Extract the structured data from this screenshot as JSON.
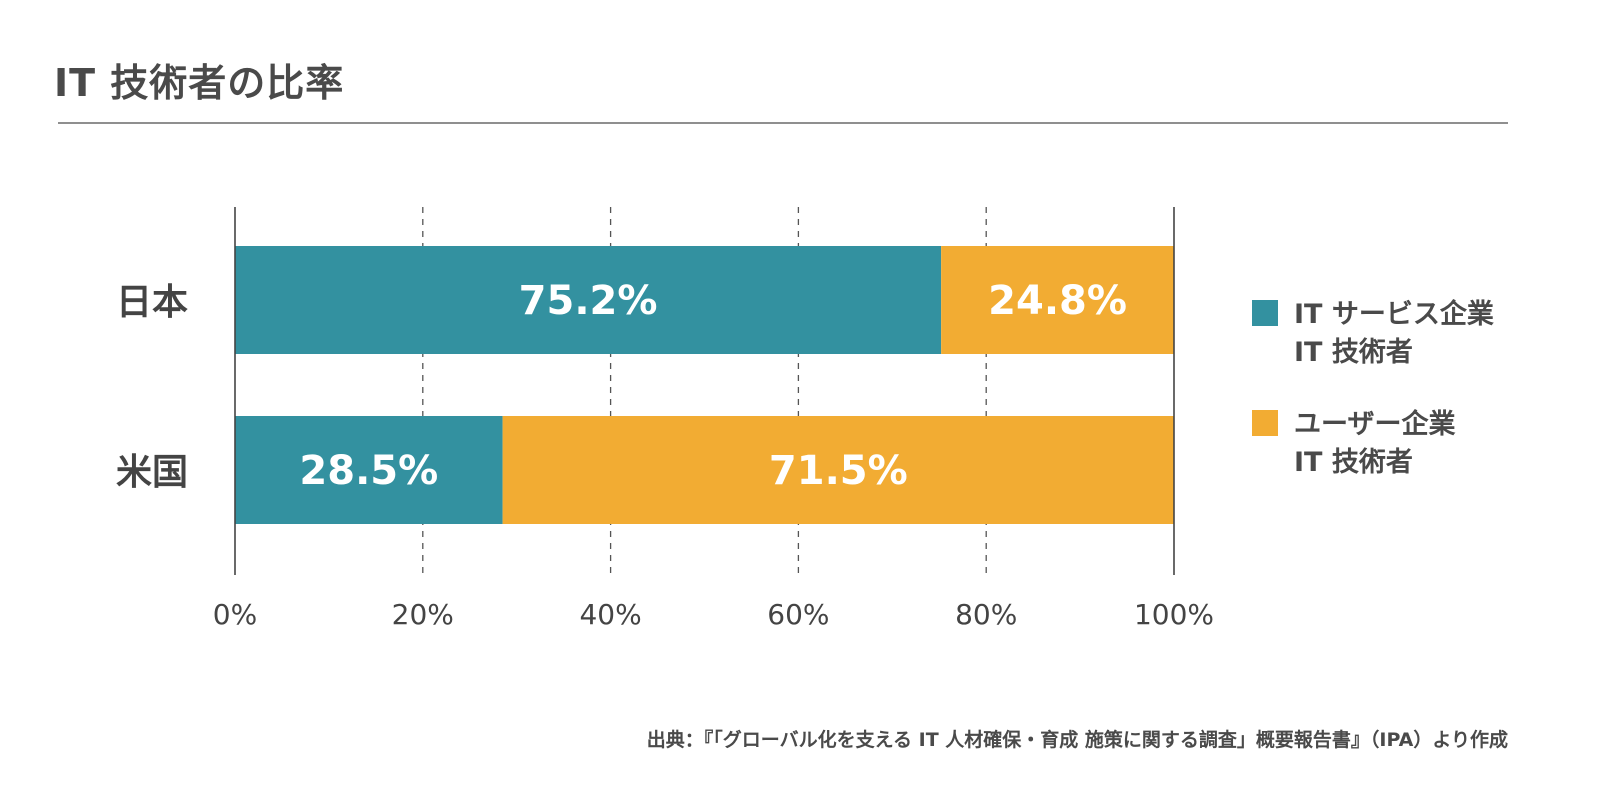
{
  "title": "IT 技術者の比率",
  "source": "出典：『「グローバル化を支える IT 人材確保・育成 施策に関する調査」概要報告書』（IPA）より作成",
  "colors": {
    "it_service": "#3391a0",
    "user_company": "#f2ac33",
    "axis": "#444444",
    "grid": "#555555",
    "bar_label": "#ffffff"
  },
  "chart_data": {
    "type": "bar",
    "orientation": "horizontal",
    "stacked": true,
    "categories": [
      "日本",
      "米国"
    ],
    "series": [
      {
        "name": "IT サービス企業 IT 技術者",
        "legend_lines": [
          "IT サービス企業",
          "IT 技術者"
        ],
        "color": "#3391a0",
        "values": [
          75.2,
          28.5
        ],
        "labels": [
          "75.2%",
          "28.5%"
        ]
      },
      {
        "name": "ユーザー企業 IT 技術者",
        "legend_lines": [
          "ユーザー企業",
          "IT 技術者"
        ],
        "color": "#f2ac33",
        "values": [
          24.8,
          71.5
        ],
        "labels": [
          "24.8%",
          "71.5%"
        ]
      }
    ],
    "xlim": [
      0,
      100
    ],
    "x_ticks": [
      0,
      20,
      40,
      60,
      80,
      100
    ],
    "x_tick_labels": [
      "0%",
      "20%",
      "40%",
      "60%",
      "80%",
      "100%"
    ],
    "grid": "dashed vertical",
    "legend_position": "right"
  }
}
